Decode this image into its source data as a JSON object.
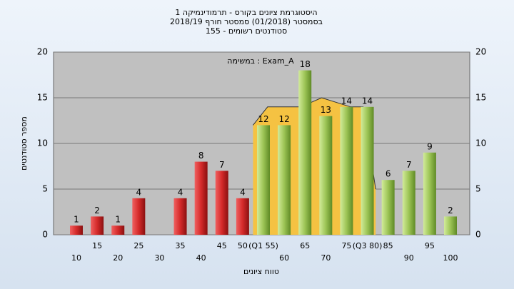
{
  "chart_data": {
    "type": "bar",
    "title": [
      "היסטוגרמת ציונים בקורס - תרמודינמיקה 1",
      "בסמסטר (01/2018) סמסטר חורף 2018/19",
      "סטודנטים רשומים - 155"
    ],
    "annotation": "במשימה : Exam_A",
    "y_label": "מספר סטודנטים",
    "x_label": "טווח ציונים",
    "categories": [
      "10",
      "15",
      "20",
      "25",
      "30",
      "35",
      "40",
      "45",
      "50",
      "(Q1 55)",
      "60",
      "65",
      "70",
      "75",
      "(Q3 80)",
      "85",
      "90",
      "95",
      "100"
    ],
    "series": [
      {
        "color": "#d42a2a",
        "values": [
          1,
          2,
          1,
          4,
          0,
          4,
          8,
          7,
          4,
          null,
          null,
          null,
          null,
          null,
          null,
          null,
          null,
          null,
          null
        ]
      },
      {
        "color": "#9cc455",
        "values": [
          null,
          null,
          null,
          null,
          null,
          null,
          null,
          null,
          null,
          12,
          12,
          18,
          13,
          14,
          14,
          6,
          7,
          9,
          2
        ]
      }
    ],
    "area": {
      "color": "#f5c242",
      "x": [
        52.5,
        56,
        64,
        69,
        76,
        79,
        82
      ],
      "values": [
        12,
        14,
        14,
        15,
        14,
        14,
        5
      ]
    },
    "xlim": [
      10,
      100
    ],
    "ylim": [
      0,
      20
    ],
    "yticks": [
      0,
      5,
      10,
      15,
      20
    ],
    "grid": true
  }
}
